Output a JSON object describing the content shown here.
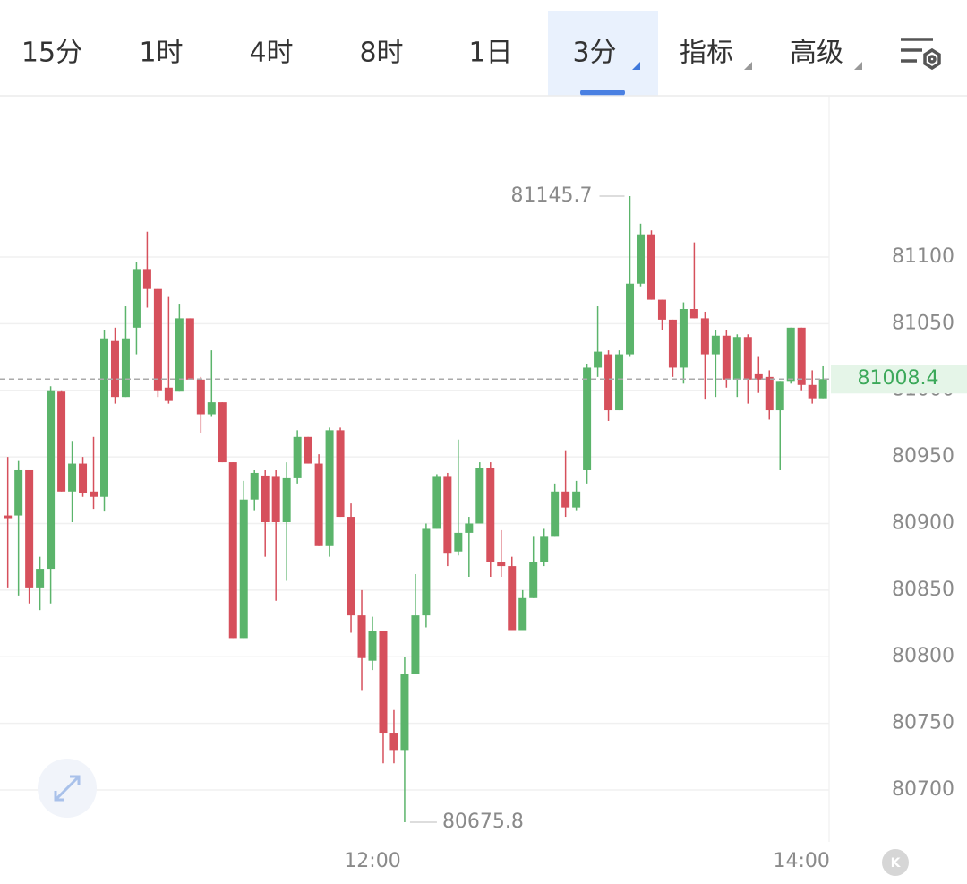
{
  "toolbar": {
    "tabs": [
      "15分",
      "1时",
      "4时",
      "8时",
      "1日",
      "3分",
      "指标",
      "高级"
    ],
    "active": 5
  },
  "chart_data": {
    "type": "candlestick",
    "categories": [
      null,
      null,
      null,
      null,
      null,
      null,
      null,
      null,
      null,
      null,
      null,
      null,
      null,
      null,
      null,
      null,
      null,
      null,
      null,
      null,
      null,
      null,
      null,
      null,
      null,
      null,
      null,
      null,
      null,
      null,
      null,
      null,
      null,
      null,
      "12:00",
      null,
      null,
      null,
      null,
      null,
      null,
      null,
      null,
      null,
      null,
      null,
      null,
      null,
      null,
      null,
      null,
      null,
      null,
      null,
      null,
      null,
      null,
      null,
      null,
      null,
      null,
      null,
      null,
      null,
      null,
      null,
      null,
      null,
      null,
      null,
      null,
      null,
      null,
      null,
      "14:00",
      null,
      null
    ],
    "open": [
      80906,
      80906,
      80940,
      80852,
      80866,
      80999,
      80924,
      80945,
      80924,
      80920,
      81037,
      80995,
      81047,
      81091,
      81076,
      81002,
      80999,
      81054,
      81008,
      80982,
      80991,
      80946,
      80814,
      80918,
      80936,
      80935,
      80901,
      80934,
      80965,
      80945,
      80883,
      80970,
      80905,
      80831,
      80797,
      80819,
      80743,
      80730,
      80787,
      80831,
      80896,
      80935,
      80879,
      80893,
      80900,
      80942,
      80871,
      80868,
      80820,
      80844,
      80871,
      80890,
      80924,
      80912,
      80940,
      81017,
      81027,
      80985,
      81027,
      81080,
      81117,
      81068,
      81053,
      81017,
      81061,
      81054,
      81027,
      81041,
      81008,
      81040,
      81012,
      81010,
      80985,
      81007,
      81047,
      81004,
      80994
    ],
    "high": [
      80950,
      80947,
      80940,
      80875,
      81003,
      81000,
      80962,
      80950,
      80965,
      81045,
      81047,
      81063,
      81096,
      81119,
      81076,
      81070,
      81065,
      81054,
      81010,
      81030,
      80991,
      80946,
      80932,
      80940,
      80940,
      80940,
      80946,
      80970,
      80965,
      80952,
      80972,
      80972,
      80915,
      80850,
      80830,
      80819,
      80760,
      80800,
      80862,
      80900,
      80937,
      80938,
      80963,
      80905,
      80946,
      80946,
      80895,
      80875,
      80850,
      80890,
      80896,
      80930,
      80955,
      80932,
      81020,
      81063,
      81030,
      81030,
      81145.7,
      81125,
      81120,
      81068,
      81053,
      81066,
      81111,
      81059,
      81045,
      81045,
      81042,
      81042,
      81025,
      81015,
      81007,
      81047,
      81047,
      81015,
      81018
    ],
    "low": [
      80852,
      80846,
      80840,
      80835,
      80840,
      80924,
      80901,
      80920,
      80911,
      80909,
      80990,
      80995,
      81027,
      81062,
      80995,
      80990,
      80999,
      81008,
      80968,
      80980,
      80946,
      80814,
      80814,
      80910,
      80875,
      80842,
      80857,
      80930,
      80945,
      80883,
      80875,
      80905,
      80818,
      80775,
      80790,
      80720,
      80720,
      80675.8,
      80787,
      80822,
      80896,
      80868,
      80876,
      80860,
      80900,
      80860,
      80860,
      80820,
      80820,
      80844,
      80868,
      80890,
      80905,
      80910,
      80930,
      81010,
      80977,
      80985,
      81025,
      81078,
      81068,
      81045,
      81010,
      81005,
      81054,
      80993,
      80995,
      81002,
      80995,
      80990,
      80998,
      80978,
      80940,
      81005,
      81000,
      80990,
      80994
    ],
    "close": [
      80904,
      80940,
      80852,
      80866,
      81000,
      80924,
      80945,
      80923,
      80920,
      81039,
      80995,
      81039,
      81091,
      81076,
      81000,
      80992,
      81054,
      81008,
      80982,
      80991,
      80946,
      80814,
      80918,
      80938,
      80901,
      80901,
      80934,
      80965,
      80945,
      80883,
      80970,
      80905,
      80831,
      80799,
      80819,
      80743,
      80730,
      80787,
      80831,
      80896,
      80935,
      80878,
      80893,
      80900,
      80942,
      80871,
      80868,
      80820,
      80844,
      80871,
      80890,
      80924,
      80912,
      80924,
      81017,
      81029,
      80985,
      81027,
      81080,
      81117,
      81068,
      81053,
      81017,
      81061,
      81054,
      81027,
      81041,
      81008,
      81040,
      81008,
      81008,
      80985,
      81007,
      81047,
      81004,
      80994,
      81008.4
    ],
    "up_color": "#5bb46b",
    "down_color": "#d6505c",
    "ylim": [
      80661,
      81221
    ],
    "yticks": [
      80700,
      80750,
      80800,
      80850,
      80900,
      80950,
      81000,
      81050,
      81100
    ],
    "grid": true
  }
}
